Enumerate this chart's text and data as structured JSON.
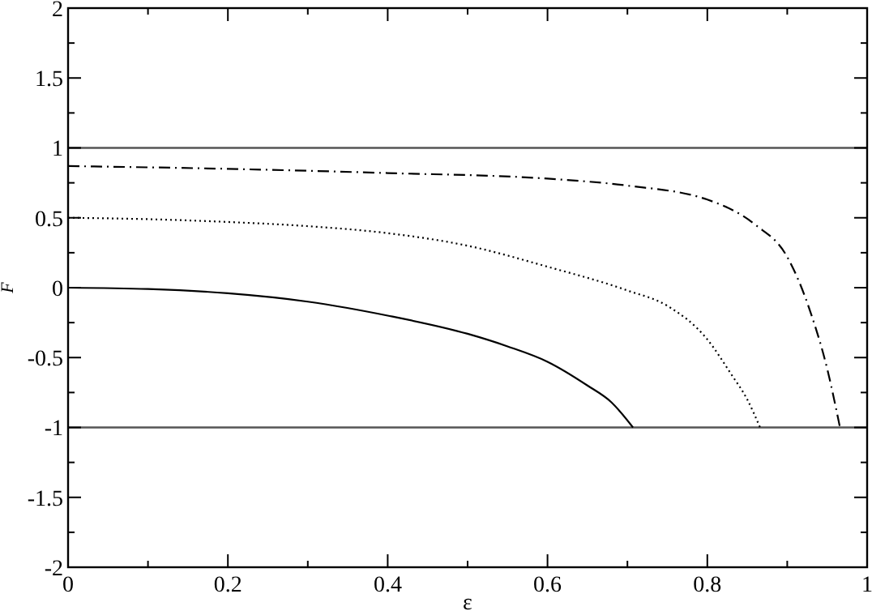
{
  "chart_data": {
    "type": "line",
    "xlabel": "ε",
    "ylabel": "F",
    "xlim": [
      0,
      1
    ],
    "ylim": [
      -2,
      2
    ],
    "xticks": [
      0,
      {
        "value": 0.1,
        "label": null
      },
      0.2,
      {
        "value": 0.3,
        "label": null
      },
      0.4,
      {
        "value": 0.5,
        "label": null
      },
      0.6,
      {
        "value": 0.7,
        "label": null
      },
      0.8,
      {
        "value": 0.9,
        "label": null
      },
      1
    ],
    "yticks": [
      -2,
      {
        "value": -1.75,
        "label": null
      },
      -1.5,
      {
        "value": -1.25,
        "label": null
      },
      -1,
      {
        "value": -0.75,
        "label": null
      },
      -0.5,
      {
        "value": -0.25,
        "label": null
      },
      0,
      {
        "value": 0.25,
        "label": null
      },
      0.5,
      {
        "value": 0.75,
        "label": null
      },
      1,
      {
        "value": 1.25,
        "label": null
      },
      1.5,
      {
        "value": 1.75,
        "label": null
      },
      2
    ],
    "grid": false,
    "marker": "none",
    "ref_lines": [
      {
        "axis": "y",
        "value": 1,
        "color": "#555555"
      },
      {
        "axis": "y",
        "value": -1,
        "color": "#555555"
      }
    ],
    "series": [
      {
        "color": "#000000",
        "line_style": "solid",
        "x": [
          0,
          0.1,
          0.2,
          0.3,
          0.4,
          0.5,
          0.55,
          0.6,
          0.65,
          0.68,
          0.707
        ],
        "values": [
          0,
          -0.01,
          -0.04,
          -0.1,
          -0.2,
          -0.33,
          -0.42,
          -0.53,
          -0.7,
          -0.82,
          -1
        ]
      },
      {
        "color": "#000000",
        "line_style": "dotted",
        "x": [
          0,
          0.1,
          0.2,
          0.3,
          0.4,
          0.5,
          0.6,
          0.7,
          0.75,
          0.8,
          0.83,
          0.85,
          0.866
        ],
        "values": [
          0.5,
          0.49,
          0.47,
          0.44,
          0.39,
          0.3,
          0.15,
          -0.02,
          -0.13,
          -0.37,
          -0.62,
          -0.8,
          -1
        ]
      },
      {
        "color": "#000000",
        "line_style": "dashdot",
        "x": [
          0,
          0.2,
          0.4,
          0.6,
          0.7,
          0.8,
          0.86,
          0.9,
          0.93,
          0.95,
          0.966
        ],
        "values": [
          0.87,
          0.85,
          0.82,
          0.78,
          0.73,
          0.63,
          0.45,
          0.22,
          -0.19,
          -0.58,
          -1
        ]
      }
    ]
  }
}
